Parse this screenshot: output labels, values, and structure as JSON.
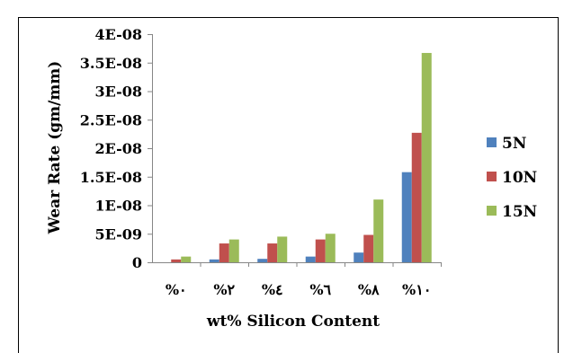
{
  "chart_data": {
    "type": "bar",
    "title": "",
    "xlabel": "wt% Silicon Content",
    "ylabel": "Wear Rate (gm/mm)",
    "categories": [
      "%٠",
      "%٢",
      "%٤",
      "%٦",
      "%٨",
      "%١٠"
    ],
    "y_ticks": [
      "0",
      "5E-09",
      "1E-08",
      "1.5E-08",
      "2E-08",
      "2.5E-08",
      "3E-08",
      "3.5E-08",
      "4E-08"
    ],
    "ylim": [
      0,
      4e-08
    ],
    "grid": false,
    "legend_position": "right",
    "series": [
      {
        "name": "5N",
        "color": "#4F81BD",
        "values": [
          0,
          5e-10,
          6e-10,
          1e-09,
          1.7e-09,
          1.58e-08
        ]
      },
      {
        "name": "10N",
        "color": "#C0504D",
        "values": [
          5e-10,
          3.3e-09,
          3.3e-09,
          4e-09,
          4.8e-09,
          2.27e-08
        ]
      },
      {
        "name": "15N",
        "color": "#9BBB59",
        "values": [
          1e-09,
          4e-09,
          4.5e-09,
          5e-09,
          1.1e-08,
          3.67e-08
        ]
      }
    ]
  }
}
